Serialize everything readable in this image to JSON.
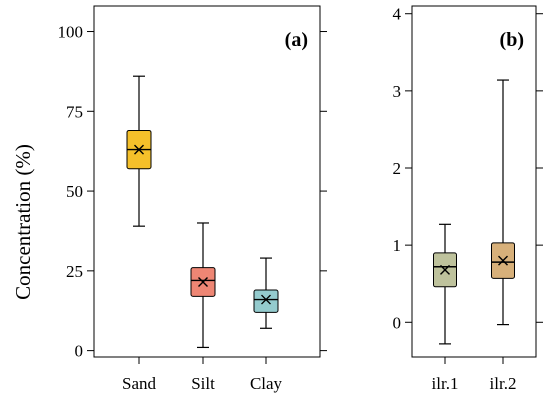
{
  "ylabel": "Concentration (%)",
  "chart_data": [
    {
      "type": "box",
      "panel": "(a)",
      "ylim": [
        -2,
        108
      ],
      "yticks": [
        0,
        25,
        50,
        75,
        100
      ],
      "categories": [
        "Sand",
        "Silt",
        "Clay"
      ],
      "boxes": [
        {
          "name": "Sand",
          "min": 39,
          "q1": 57,
          "median": 63,
          "q3": 69,
          "max": 86,
          "mean": 63,
          "color": "#F5C02A"
        },
        {
          "name": "Silt",
          "min": 1,
          "q1": 17,
          "median": 22,
          "q3": 26,
          "max": 40,
          "mean": 21.5,
          "color": "#EE8674"
        },
        {
          "name": "Clay",
          "min": 7,
          "q1": 12,
          "median": 16,
          "q3": 19,
          "max": 29,
          "mean": 16,
          "color": "#94CBCE"
        }
      ]
    },
    {
      "type": "box",
      "panel": "(b)",
      "ylim": [
        -0.45,
        4.1
      ],
      "yticks": [
        0,
        1,
        2,
        3,
        4
      ],
      "categories": [
        "ilr.1",
        "ilr.2"
      ],
      "boxes": [
        {
          "name": "ilr.1",
          "min": -0.28,
          "q1": 0.46,
          "median": 0.72,
          "q3": 0.9,
          "max": 1.27,
          "mean": 0.68,
          "color": "#BEC29C"
        },
        {
          "name": "ilr.2",
          "min": -0.03,
          "q1": 0.57,
          "median": 0.78,
          "q3": 1.03,
          "max": 3.14,
          "mean": 0.8,
          "color": "#D7B07A"
        }
      ]
    }
  ]
}
